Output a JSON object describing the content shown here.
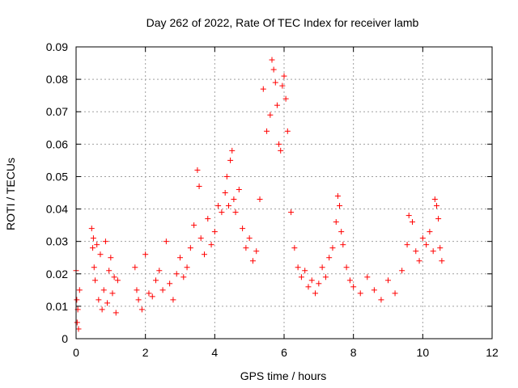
{
  "chart_data": {
    "type": "scatter",
    "title": "Day 262 of 2022, Rate Of TEC Index for receiver lamb",
    "xlabel": "GPS time / hours",
    "ylabel": "ROTI / TECUs",
    "xlim": [
      0,
      12
    ],
    "ylim": [
      0,
      0.09
    ],
    "x_ticks": [
      "0",
      "2",
      "4",
      "6",
      "8",
      "10",
      "12"
    ],
    "y_ticks": [
      "0",
      "0.01",
      "0.02",
      "0.03",
      "0.04",
      "0.05",
      "0.06",
      "0.07",
      "0.08",
      "0.09"
    ],
    "grid": true,
    "marker": "plus",
    "color": "#ff0000",
    "series": [
      {
        "x": [
          0.0,
          0.02,
          0.03,
          0.05,
          0.07,
          0.1,
          0.45,
          0.48,
          0.5,
          0.52,
          0.55,
          0.6,
          0.65,
          0.7,
          0.75,
          0.8,
          0.85,
          0.9,
          0.95,
          1.0,
          1.05,
          1.1,
          1.15,
          1.2,
          1.7,
          1.75,
          1.8,
          1.9,
          2.0,
          2.1,
          2.2,
          2.3,
          2.4,
          2.5,
          2.6,
          2.7,
          2.8,
          2.9,
          3.0,
          3.1,
          3.2,
          3.3,
          3.4,
          3.5,
          3.55,
          3.6,
          3.7,
          3.8,
          3.9,
          4.0,
          4.1,
          4.2,
          4.3,
          4.35,
          4.4,
          4.45,
          4.5,
          4.55,
          4.6,
          4.7,
          4.8,
          4.9,
          5.0,
          5.1,
          5.2,
          5.3,
          5.4,
          5.5,
          5.6,
          5.65,
          5.7,
          5.75,
          5.8,
          5.85,
          5.9,
          5.95,
          6.0,
          6.05,
          6.1,
          6.2,
          6.3,
          6.4,
          6.5,
          6.6,
          6.7,
          6.8,
          6.9,
          7.0,
          7.1,
          7.2,
          7.3,
          7.4,
          7.5,
          7.55,
          7.6,
          7.65,
          7.7,
          7.8,
          7.9,
          8.0,
          8.2,
          8.4,
          8.6,
          8.8,
          9.0,
          9.2,
          9.4,
          9.55,
          9.6,
          9.7,
          9.8,
          9.9,
          10.0,
          10.1,
          10.2,
          10.3,
          10.35,
          10.4,
          10.45,
          10.5,
          10.55
        ],
        "y": [
          0.021,
          0.012,
          0.005,
          0.009,
          0.003,
          0.015,
          0.034,
          0.028,
          0.031,
          0.022,
          0.018,
          0.029,
          0.012,
          0.026,
          0.009,
          0.015,
          0.03,
          0.011,
          0.021,
          0.025,
          0.014,
          0.019,
          0.008,
          0.018,
          0.022,
          0.015,
          0.012,
          0.009,
          0.026,
          0.014,
          0.013,
          0.018,
          0.021,
          0.015,
          0.03,
          0.017,
          0.012,
          0.02,
          0.025,
          0.019,
          0.022,
          0.028,
          0.035,
          0.052,
          0.047,
          0.031,
          0.026,
          0.037,
          0.029,
          0.033,
          0.041,
          0.039,
          0.045,
          0.05,
          0.041,
          0.055,
          0.058,
          0.043,
          0.039,
          0.046,
          0.034,
          0.028,
          0.031,
          0.024,
          0.027,
          0.043,
          0.077,
          0.064,
          0.069,
          0.086,
          0.083,
          0.079,
          0.072,
          0.06,
          0.058,
          0.078,
          0.081,
          0.074,
          0.064,
          0.039,
          0.028,
          0.022,
          0.019,
          0.021,
          0.016,
          0.018,
          0.014,
          0.017,
          0.022,
          0.019,
          0.025,
          0.028,
          0.036,
          0.044,
          0.041,
          0.033,
          0.029,
          0.022,
          0.018,
          0.016,
          0.014,
          0.019,
          0.015,
          0.012,
          0.018,
          0.014,
          0.021,
          0.029,
          0.038,
          0.036,
          0.027,
          0.024,
          0.031,
          0.029,
          0.033,
          0.027,
          0.043,
          0.041,
          0.037,
          0.028,
          0.024
        ]
      }
    ]
  }
}
